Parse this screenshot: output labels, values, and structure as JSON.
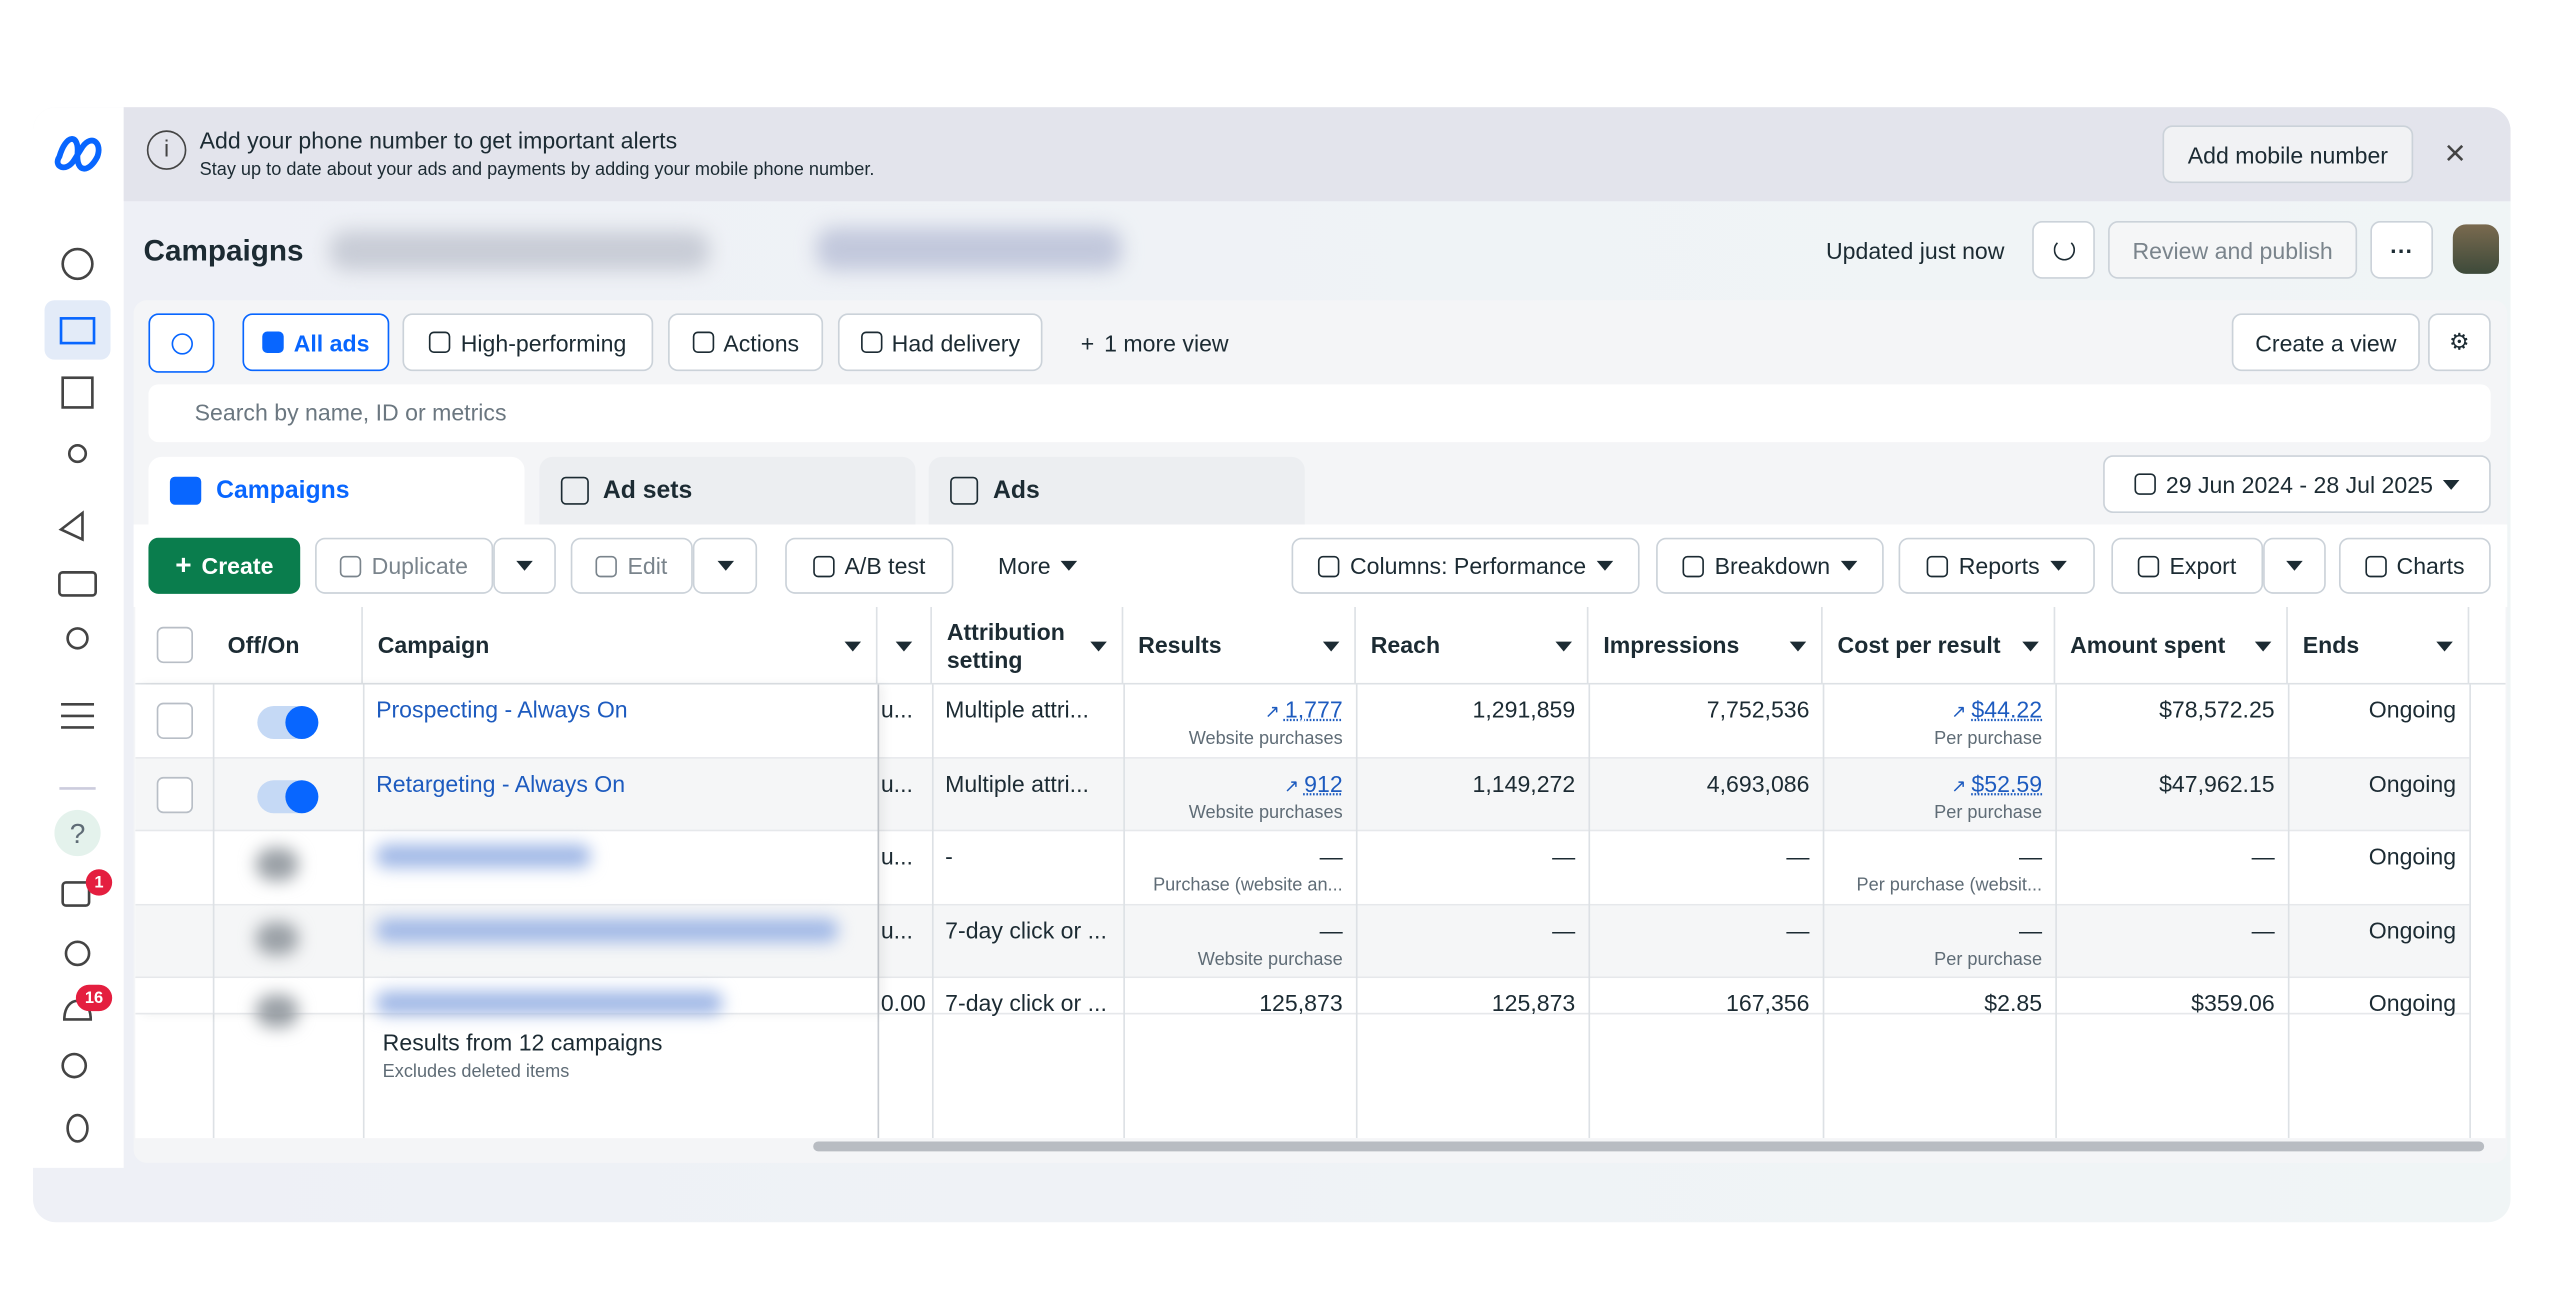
{
  "banner": {
    "title": "Add your phone number to get important alerts",
    "subtitle": "Stay up to date about your ads and payments by adding your mobile phone number.",
    "button": "Add mobile number"
  },
  "header": {
    "title": "Campaigns",
    "status": "Updated just now",
    "publish": "Review and publish"
  },
  "views": {
    "items": [
      "All ads",
      "High-performing",
      "Actions",
      "Had delivery",
      "1 more view"
    ],
    "create_view": "Create a view"
  },
  "search_placeholder": "Search by name, ID or metrics",
  "tabs": [
    "Campaigns",
    "Ad sets",
    "Ads"
  ],
  "date_range": "29 Jun 2024 - 28 Jul 2025",
  "toolbar": {
    "create": "Create",
    "duplicate": "Duplicate",
    "edit": "Edit",
    "ab_test": "A/B test",
    "more": "More",
    "columns": "Columns: Performance",
    "breakdown": "Breakdown",
    "reports": "Reports",
    "export": "Export",
    "charts": "Charts"
  },
  "sidebar": {
    "badges": [
      "1",
      "16"
    ]
  },
  "table": {
    "columns": [
      "Off/On",
      "Campaign",
      "Attribution setting",
      "Results",
      "Reach",
      "Impressions",
      "Cost per result",
      "Amount spent",
      "Ends"
    ],
    "rows": [
      {
        "name": "Prospecting - Always On",
        "hidden": "u...",
        "attribution": "Multiple attri...",
        "results": "1,777",
        "results_sub": "Website purchases",
        "reach": "1,291,859",
        "impressions": "7,752,536",
        "cost": "$44.22",
        "cost_sub": "Per purchase",
        "spent": "$78,572.25",
        "ends": "Ongoing"
      },
      {
        "name": "Retargeting - Always On",
        "hidden": "u...",
        "attribution": "Multiple attri...",
        "results": "912",
        "results_sub": "Website purchases",
        "reach": "1,149,272",
        "impressions": "4,693,086",
        "cost": "$52.59",
        "cost_sub": "Per purchase",
        "spent": "$47,962.15",
        "ends": "Ongoing"
      },
      {
        "hidden": "u...",
        "attribution": "-",
        "results": "—",
        "results_sub": "Purchase (website an...",
        "reach": "—",
        "impressions": "—",
        "cost": "—",
        "cost_sub": "Per purchase (websit...",
        "spent": "—",
        "ends": "Ongoing"
      },
      {
        "hidden": "u...",
        "attribution": "7-day click or ...",
        "results": "—",
        "results_sub": "Website purchase",
        "reach": "—",
        "impressions": "—",
        "cost": "—",
        "cost_sub": "Per purchase",
        "spent": "—",
        "ends": "Ongoing"
      },
      {
        "hidden": "0.00",
        "attribution": "7-day click or ...",
        "results": "125,873",
        "reach": "125,873",
        "impressions": "167,356",
        "cost": "$2.85",
        "spent": "$359.06",
        "ends": "Ongoing"
      }
    ],
    "footer": {
      "title": "Results from 12 campaigns",
      "subtitle": "Excludes deleted items"
    }
  }
}
